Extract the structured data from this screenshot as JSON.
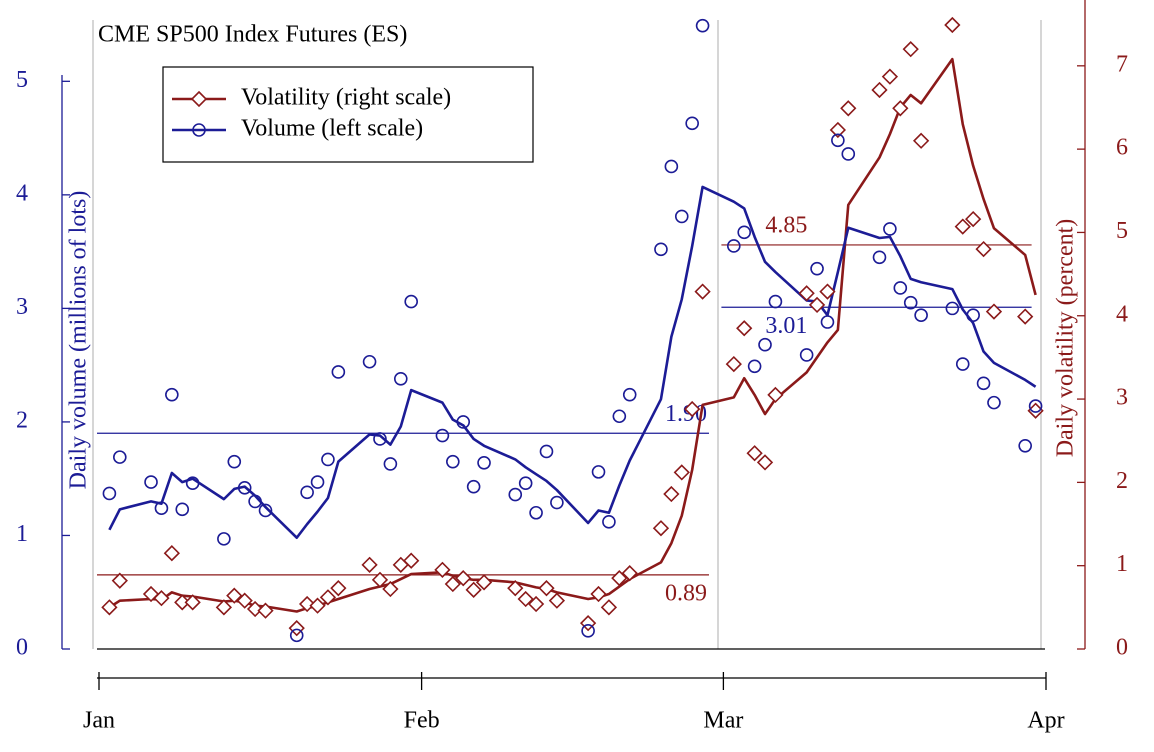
{
  "chart_data": {
    "type": "line",
    "title": "CME SP500 Index Futures (ES)",
    "y_label": "Daily volume (millions of lots)",
    "y2_label": "Daily volatility (percent)",
    "x": [
      1,
      2,
      5,
      6,
      7,
      8,
      9,
      12,
      13,
      14,
      15,
      16,
      19,
      20,
      21,
      22,
      23,
      26,
      27,
      28,
      29,
      30,
      33,
      34,
      35,
      36,
      37,
      40,
      41,
      42,
      43,
      44,
      47,
      48,
      49,
      50,
      51,
      54,
      55,
      56,
      57,
      58,
      61,
      62,
      63,
      64,
      65,
      68,
      69,
      70,
      71,
      72,
      75,
      76,
      77,
      78,
      79,
      82,
      83,
      84,
      85,
      86,
      89,
      90
    ],
    "xlim": [
      0,
      91
    ],
    "xticks": [
      {
        "value": 0,
        "label": "Jan"
      },
      {
        "value": 31,
        "label": "Feb"
      },
      {
        "value": 60,
        "label": "Mar"
      },
      {
        "value": 91,
        "label": "Apr"
      }
    ],
    "ylim": [
      0,
      5.54
    ],
    "yticks": [
      0,
      1,
      2,
      3,
      4,
      5
    ],
    "y2lim": [
      0,
      7.55
    ],
    "y2ticks": [
      0,
      1,
      2,
      3,
      4,
      5,
      6,
      7
    ],
    "legend": "upper left",
    "series": [
      {
        "name": "Volatility (right scale)",
        "color": "#8b1a1a",
        "axis": "y2",
        "marker": "diamond",
        "values": [
          0.5,
          0.82,
          0.66,
          0.61,
          1.15,
          0.56,
          0.56,
          0.5,
          0.64,
          0.58,
          0.48,
          0.46,
          0.25,
          0.54,
          0.52,
          0.62,
          0.73,
          1.01,
          0.83,
          0.72,
          1.01,
          1.06,
          0.95,
          0.78,
          0.85,
          0.71,
          0.8,
          0.73,
          0.6,
          0.54,
          0.73,
          0.58,
          0.31,
          0.66,
          0.5,
          0.85,
          0.91,
          1.45,
          1.86,
          2.12,
          2.88,
          4.29,
          3.42,
          3.85,
          2.35,
          2.24,
          3.05,
          4.27,
          4.13,
          4.29,
          6.23,
          6.49,
          6.71,
          6.87,
          6.49,
          7.2,
          6.1,
          7.49,
          5.07,
          5.16,
          4.8,
          4.05,
          3.99,
          2.86
        ],
        "average": [
          0.5,
          0.58,
          0.6,
          0.59,
          0.68,
          0.64,
          0.63,
          0.57,
          0.58,
          0.56,
          0.52,
          0.51,
          0.45,
          0.49,
          0.52,
          0.56,
          0.6,
          0.72,
          0.75,
          0.78,
          0.84,
          0.9,
          0.92,
          0.88,
          0.85,
          0.83,
          0.83,
          0.8,
          0.77,
          0.74,
          0.72,
          0.68,
          0.6,
          0.62,
          0.66,
          0.75,
          0.84,
          1.04,
          1.27,
          1.6,
          2.15,
          2.93,
          3.02,
          3.25,
          3.05,
          2.82,
          3.0,
          3.32,
          3.5,
          3.68,
          3.83,
          5.33,
          5.9,
          6.18,
          6.5,
          6.65,
          6.55,
          7.08,
          6.3,
          5.8,
          5.4,
          5.05,
          4.73,
          4.25
        ]
      },
      {
        "name": "Volume (left scale)",
        "color": "#1c1c96",
        "axis": "y",
        "marker": "circle",
        "values": [
          1.37,
          1.69,
          1.47,
          1.24,
          2.24,
          1.23,
          1.46,
          0.97,
          1.65,
          1.42,
          1.3,
          1.22,
          0.12,
          1.38,
          1.47,
          1.67,
          2.44,
          2.53,
          1.85,
          1.63,
          2.38,
          3.06,
          1.88,
          1.65,
          2.0,
          1.43,
          1.64,
          1.36,
          1.46,
          1.2,
          1.74,
          1.29,
          0.16,
          1.56,
          1.12,
          2.05,
          2.24,
          3.52,
          4.25,
          3.81,
          4.63,
          5.49,
          3.55,
          3.67,
          2.49,
          2.68,
          3.06,
          2.59,
          3.35,
          2.88,
          4.48,
          4.36,
          3.45,
          3.7,
          3.18,
          3.05,
          2.94,
          3.0,
          2.51,
          2.94,
          2.34,
          2.17,
          1.79,
          2.14
        ],
        "average": [
          1.05,
          1.23,
          1.3,
          1.28,
          1.55,
          1.47,
          1.5,
          1.32,
          1.41,
          1.43,
          1.35,
          1.25,
          0.98,
          1.1,
          1.21,
          1.33,
          1.65,
          1.89,
          1.88,
          1.8,
          1.96,
          2.28,
          2.17,
          2.02,
          1.97,
          1.85,
          1.79,
          1.67,
          1.6,
          1.54,
          1.48,
          1.4,
          1.11,
          1.22,
          1.2,
          1.44,
          1.66,
          2.2,
          2.75,
          3.08,
          3.55,
          4.07,
          3.94,
          3.88,
          3.63,
          3.41,
          3.32,
          3.07,
          3.06,
          2.94,
          3.32,
          3.71,
          3.62,
          3.63,
          3.46,
          3.26,
          3.23,
          3.17,
          2.99,
          2.87,
          2.62,
          2.52,
          2.37,
          2.31
        ]
      }
    ],
    "reference_lines": [
      {
        "value": 1.9,
        "label": "1.90",
        "axis": "y",
        "color": "#1c1c96",
        "span": [
          0,
          59
        ],
        "label_pos": "above-end"
      },
      {
        "value": 3.01,
        "label": "3.01",
        "axis": "y",
        "color": "#1c1c96",
        "span": [
          60,
          90
        ],
        "label_pos": "below-start"
      },
      {
        "value": 0.89,
        "label": "0.89",
        "axis": "y2",
        "color": "#8b1a1a",
        "span": [
          0,
          59
        ],
        "label_pos": "below-end"
      },
      {
        "value": 4.85,
        "label": "4.85",
        "axis": "y2",
        "color": "#8b1a1a",
        "span": [
          60,
          90
        ],
        "label_pos": "above-start"
      }
    ]
  }
}
